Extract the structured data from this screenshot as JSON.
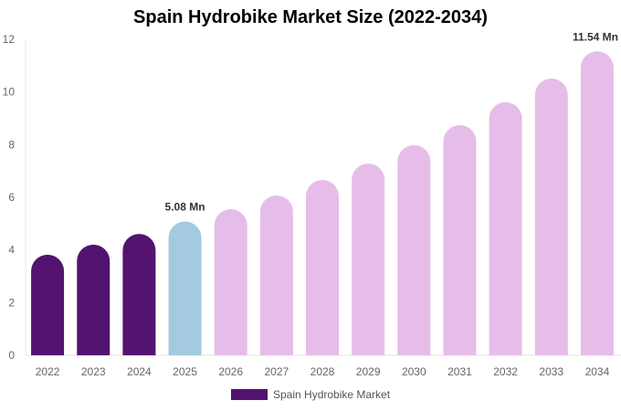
{
  "chart_data": {
    "type": "bar",
    "title": "Spain Hydrobike Market Size (2022-2034)",
    "categories": [
      "2022",
      "2023",
      "2024",
      "2025",
      "2026",
      "2027",
      "2028",
      "2029",
      "2030",
      "2031",
      "2032",
      "2033",
      "2034"
    ],
    "series": [
      {
        "name": "Spain Hydrobike Market",
        "values": [
          3.82,
          4.2,
          4.61,
          5.08,
          5.55,
          6.07,
          6.66,
          7.28,
          7.98,
          8.74,
          9.61,
          10.51,
          11.54
        ]
      }
    ],
    "data_labels": {
      "3": "5.08 Mn",
      "12": "11.54 Mn"
    },
    "ylim": [
      0,
      12
    ],
    "yticks": [
      0,
      2,
      4,
      6,
      8,
      10,
      12
    ],
    "xlabel": "",
    "ylabel": "",
    "grid": false,
    "legend": "bottom",
    "colors": {
      "historical": "#52146f",
      "base_year": "#a3cadf",
      "forecast": "#e6bde8"
    },
    "color_groups": [
      "historical",
      "historical",
      "historical",
      "base_year",
      "forecast",
      "forecast",
      "forecast",
      "forecast",
      "forecast",
      "forecast",
      "forecast",
      "forecast",
      "forecast"
    ]
  }
}
